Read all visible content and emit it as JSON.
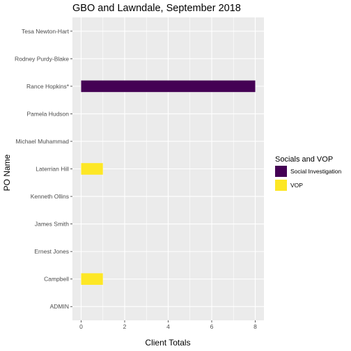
{
  "chart_data": {
    "type": "bar",
    "orientation": "horizontal",
    "title": "GBO and Lawndale, September 2018",
    "xlabel": "Client Totals",
    "ylabel": "PO Name",
    "categories": [
      "Tesa Newton-Hart",
      "Rodney Purdy-Blake",
      "Rance Hopkins*",
      "Pamela Hudson",
      "Michael Muhammad",
      "Laterrian Hill",
      "Kenneth Ollins",
      "James Smith",
      "Ernest Jones",
      "Campbell",
      "ADMIN"
    ],
    "series": [
      {
        "name": "Social Investigation",
        "color": "#440154",
        "values": [
          0,
          0,
          8,
          0,
          0,
          0,
          0,
          0,
          0,
          0,
          0
        ]
      },
      {
        "name": "VOP",
        "color": "#FDE725",
        "values": [
          0,
          0,
          0,
          0,
          0,
          1,
          0,
          0,
          0,
          1,
          0
        ]
      }
    ],
    "xlim": [
      -0.4,
      8.4
    ],
    "xticks": [
      "0",
      "2",
      "4",
      "6",
      "8"
    ],
    "legend": {
      "title": "Socials and VOP",
      "position": "right"
    },
    "grid": true,
    "panel_background": "#EBEBEB"
  }
}
